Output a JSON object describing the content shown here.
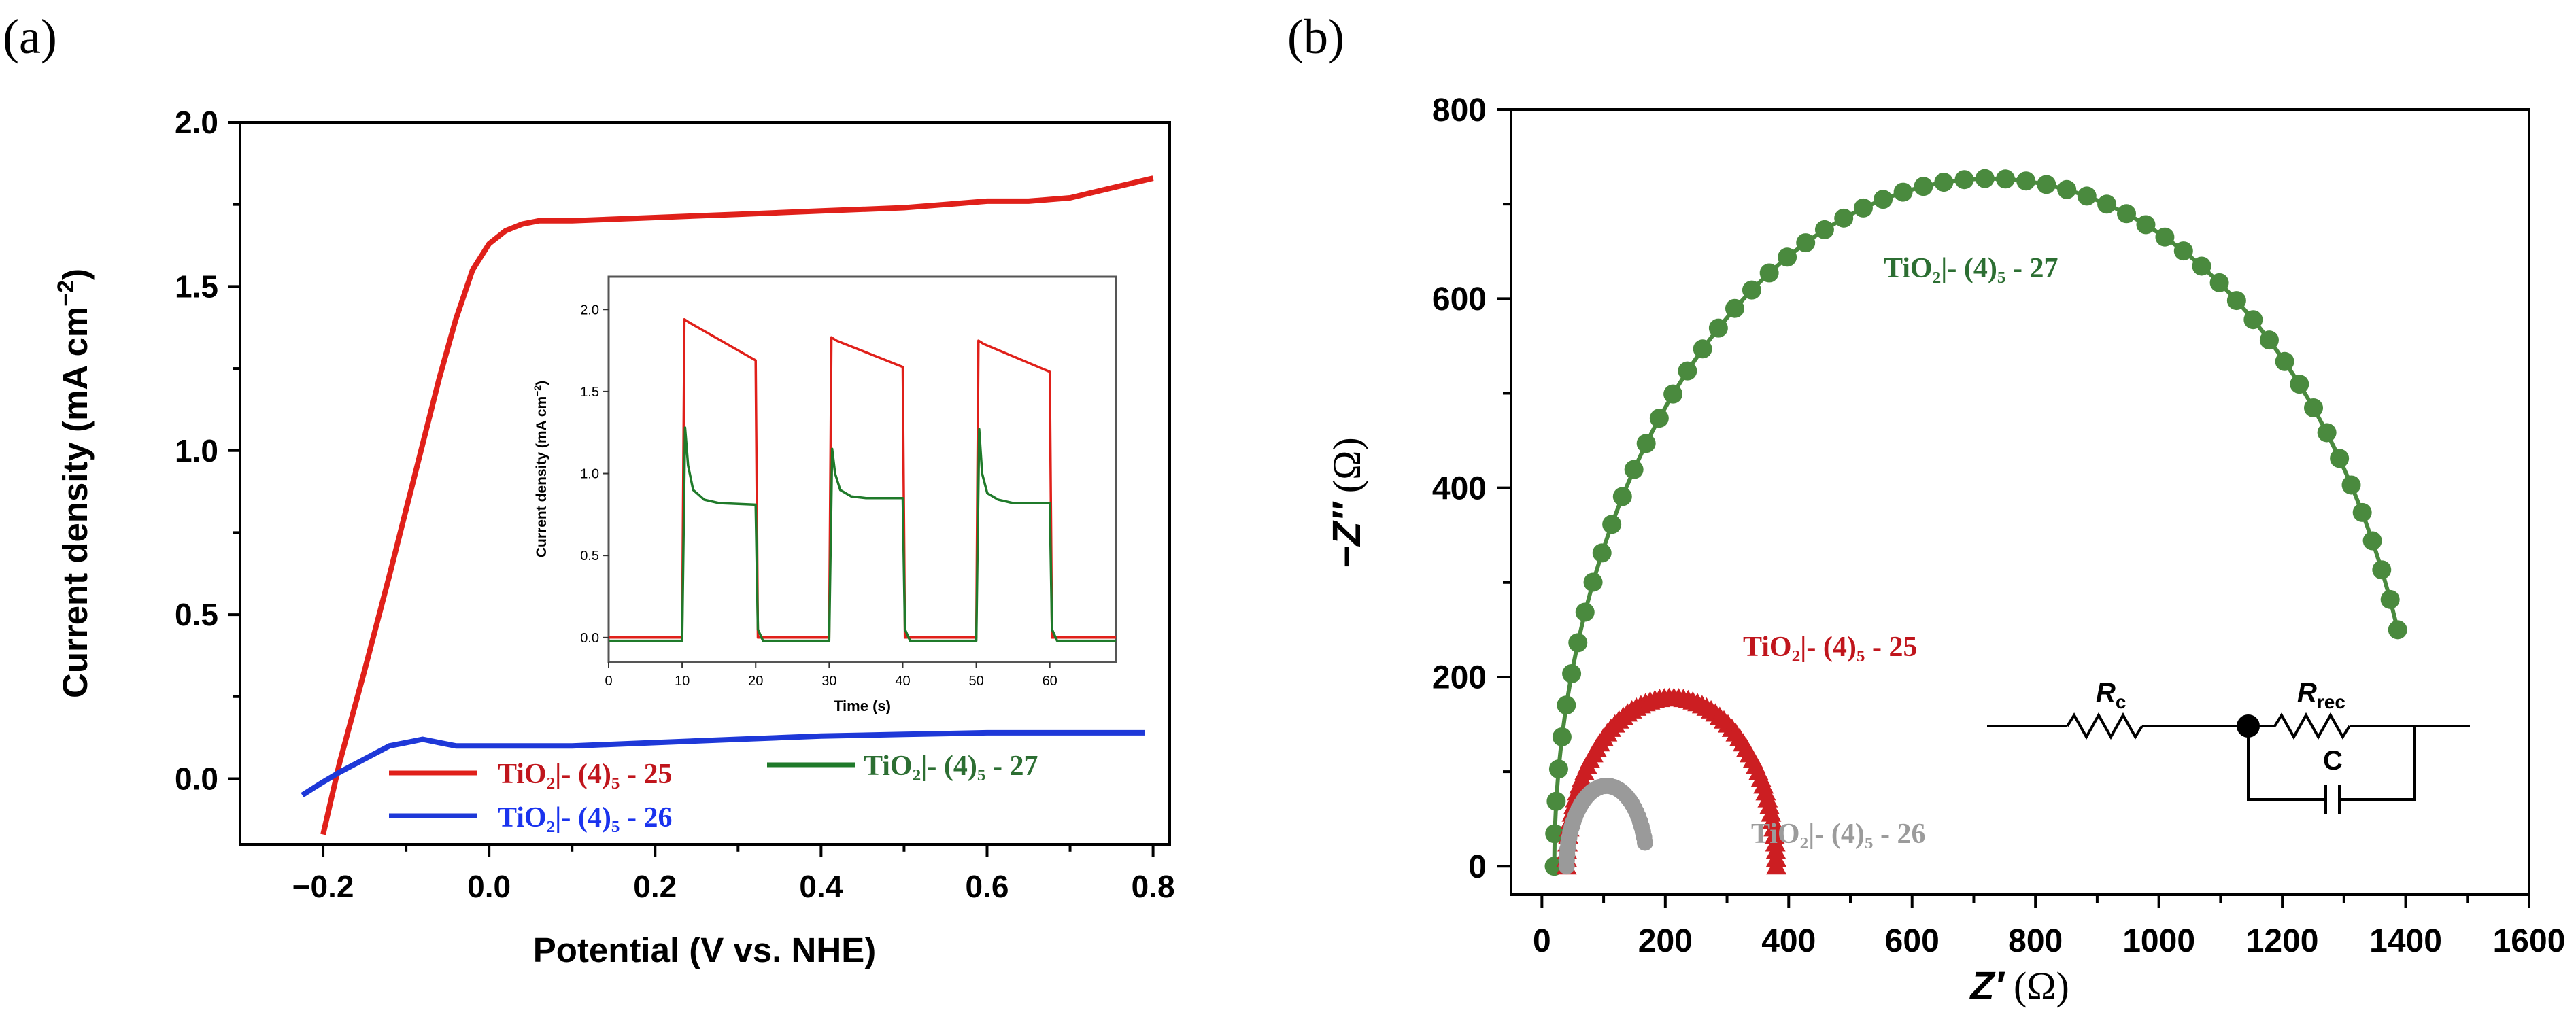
{
  "panel_labels": {
    "a": "(a)",
    "b": "(b)"
  },
  "colors": {
    "red": "#e0201a",
    "blue": "#1e38d8",
    "green": "#1f7a2a",
    "marker_green": "#4a8a3e",
    "marker_red": "#cc1e22",
    "marker_gray": "#9a9a9a",
    "label_green": "#2c6e32",
    "label_red": "#c0151c",
    "label_blue": "#1a33ee",
    "label_gray": "#9b9b9b"
  },
  "chart_data": [
    {
      "id": "panel-a-main",
      "type": "line",
      "title": "",
      "xlabel": "Potential (V vs. NHE)",
      "ylabel": "Current density (mA cm",
      "ylabel_sup": "−2",
      "ylabel_close": ")",
      "xlim": [
        -0.3,
        0.82
      ],
      "ylim": [
        -0.2,
        2.0
      ],
      "xticks": [
        -0.2,
        0.0,
        0.2,
        0.4,
        0.6,
        0.8
      ],
      "xtick_labels": [
        "−0.2",
        "0.0",
        "0.2",
        "0.4",
        "0.6",
        "0.8"
      ],
      "yticks": [
        0.0,
        0.5,
        1.0,
        1.5,
        2.0
      ],
      "ytick_labels": [
        "0.0",
        "0.5",
        "1.0",
        "1.5",
        "2.0"
      ],
      "series": [
        {
          "name": "TiO2|- (4)5 - 25",
          "color": "red",
          "x": [
            -0.2,
            -0.18,
            -0.15,
            -0.12,
            -0.1,
            -0.08,
            -0.06,
            -0.04,
            -0.02,
            0.0,
            0.02,
            0.04,
            0.06,
            0.1,
            0.2,
            0.3,
            0.4,
            0.5,
            0.6,
            0.65,
            0.7,
            0.75,
            0.8
          ],
          "y": [
            -0.17,
            0.05,
            0.33,
            0.62,
            0.82,
            1.02,
            1.22,
            1.4,
            1.55,
            1.63,
            1.67,
            1.69,
            1.7,
            1.7,
            1.71,
            1.72,
            1.73,
            1.74,
            1.76,
            1.76,
            1.77,
            1.8,
            1.83
          ]
        },
        {
          "name": "TiO2|- (4)5 - 26",
          "color": "blue",
          "x": [
            -0.225,
            -0.2,
            -0.18,
            -0.15,
            -0.12,
            -0.1,
            -0.08,
            -0.06,
            -0.04,
            0.0,
            0.1,
            0.2,
            0.3,
            0.4,
            0.5,
            0.6,
            0.7,
            0.79
          ],
          "y": [
            -0.05,
            -0.01,
            0.02,
            0.06,
            0.1,
            0.11,
            0.12,
            0.11,
            0.1,
            0.1,
            0.1,
            0.11,
            0.12,
            0.13,
            0.135,
            0.14,
            0.14,
            0.14
          ]
        }
      ],
      "legend": [
        {
          "name": "TiO₂|- (4)₅ - 25",
          "color": "red"
        },
        {
          "name": "TiO₂|- (4)₅ - 26",
          "color": "blue"
        },
        {
          "name": "TiO₂|- (4)₅ - 27",
          "color": "green"
        }
      ]
    },
    {
      "id": "panel-a-inset",
      "type": "line",
      "xlabel": "Time (s)",
      "ylabel": "Current density (mA cm",
      "ylabel_sup": "−2",
      "ylabel_close": ")",
      "xlim": [
        0,
        69
      ],
      "ylim": [
        -0.15,
        2.2
      ],
      "xticks": [
        0,
        10,
        20,
        30,
        40,
        50,
        60
      ],
      "xtick_labels": [
        "0",
        "10",
        "20",
        "30",
        "40",
        "50",
        "60"
      ],
      "yticks": [
        0.0,
        0.5,
        1.0,
        1.5,
        2.0
      ],
      "ytick_labels": [
        "0.0",
        "0.5",
        "1.0",
        "1.5",
        "2.0"
      ],
      "series": [
        {
          "name": "red",
          "color": "red",
          "x": [
            0,
            10,
            10.3,
            11,
            20,
            20.3,
            30,
            30.3,
            31,
            40,
            40.3,
            50,
            50.3,
            51,
            60,
            60.3,
            69
          ],
          "y": [
            0.0,
            0.0,
            1.94,
            1.92,
            1.69,
            0.0,
            0.0,
            1.83,
            1.81,
            1.65,
            0.0,
            0.0,
            1.81,
            1.79,
            1.62,
            0.0,
            0.0
          ]
        },
        {
          "name": "green",
          "color": "green",
          "x": [
            0,
            10,
            10.4,
            10.8,
            11.5,
            13,
            15,
            20,
            20.3,
            21,
            30,
            30.4,
            30.8,
            31.5,
            33,
            35,
            40,
            40.3,
            41,
            50,
            50.4,
            50.8,
            51.5,
            53,
            55,
            60,
            60.3,
            61,
            69
          ],
          "y": [
            -0.02,
            -0.02,
            1.28,
            1.05,
            0.9,
            0.84,
            0.82,
            0.81,
            0.05,
            -0.02,
            -0.02,
            1.15,
            1.0,
            0.9,
            0.86,
            0.85,
            0.85,
            0.05,
            -0.02,
            -0.02,
            1.27,
            1.0,
            0.88,
            0.84,
            0.82,
            0.82,
            0.05,
            -0.02,
            -0.02
          ]
        }
      ]
    },
    {
      "id": "panel-b",
      "type": "scatter",
      "xlabel": "Z′ (Ω)",
      "xlabel_italic": "Z′",
      "xlabel_unit": " (Ω)",
      "ylabel_italic": "−Z″",
      "ylabel_unit": " (Ω)",
      "xlim": [
        -50,
        1600
      ],
      "ylim": [
        -30,
        800
      ],
      "xticks": [
        0,
        200,
        400,
        600,
        800,
        1000,
        1200,
        1400,
        1600
      ],
      "xtick_labels": [
        "0",
        "200",
        "400",
        "600",
        "800",
        "1000",
        "1200",
        "1400",
        "1600"
      ],
      "yticks": [
        0,
        200,
        400,
        600,
        800
      ],
      "ytick_labels": [
        "0",
        "200",
        "400",
        "600",
        "800"
      ],
      "series": [
        {
          "name": "TiO₂|- (4)₅ - 27",
          "color": "marker_green",
          "marker": "circle",
          "x_start": 20,
          "x_end": 1430,
          "peak": 727,
          "end_y": 250,
          "points": 60
        },
        {
          "name": "TiO₂|- (4)₅ - 25",
          "color": "marker_red",
          "marker": "triangle",
          "x_start": 40,
          "x_end": 380,
          "peak": 178,
          "end_y": 0,
          "points": 70
        },
        {
          "name": "TiO₂|- (4)₅ - 26",
          "color": "marker_gray",
          "marker": "circle",
          "x_start": 40,
          "x_end": 170,
          "peak": 85,
          "end_y": 25,
          "points": 40
        }
      ],
      "series_labels": [
        {
          "name": "TiO₂|- (4)₅ - 27",
          "color": "label_green"
        },
        {
          "name": "TiO₂|- (4)₅ - 25",
          "color": "label_red"
        },
        {
          "name": "TiO₂|- (4)₅ - 26",
          "color": "label_gray"
        }
      ],
      "circuit": {
        "r_c": "R",
        "r_c_sub": "c",
        "r_rec": "R",
        "r_rec_sub": "rec",
        "cap": "C"
      }
    }
  ]
}
